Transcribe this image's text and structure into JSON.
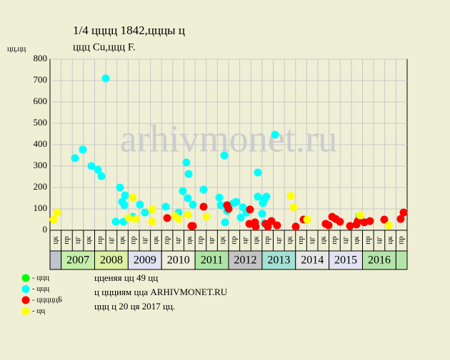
{
  "chart_data": {
    "type": "scatter",
    "title": "1/4 цццц 1842,цццы ц",
    "subtitle": "ццц Cu,ццц F.",
    "y_label": "цц,цц",
    "watermark": "arhivmonet.ru",
    "xlim": [
      0,
      32
    ],
    "ylim": [
      0,
      800
    ],
    "yticks": [
      0,
      100,
      200,
      300,
      400,
      500,
      600,
      700,
      800
    ],
    "grid": true,
    "column_labels": [
      "цк",
      "пр",
      "цг",
      "цк",
      "пр",
      "цг",
      "цк",
      "пр",
      "цг",
      "цк",
      "пр",
      "цг",
      "цк",
      "пр",
      "цг",
      "цк",
      "пр",
      "цг",
      "цк",
      "пр",
      "цг",
      "цк",
      "пр",
      "цг",
      "цк",
      "пр",
      "цг",
      "цк",
      "пр",
      "цг",
      "цк",
      "пр"
    ],
    "years": [
      "2007",
      "2008",
      "2009",
      "2010",
      "2011",
      "2012",
      "2013",
      "2014",
      "2015",
      "2016"
    ],
    "year_colors": [
      "#c4eeaa",
      "#dcf0a4",
      "#e2e2f0",
      "#eeeedc",
      "#aee4a4",
      "#c4c4c4",
      "#a4e0d4",
      "#e6e6e6",
      "#e2e2f0",
      "#b4e4aa"
    ],
    "series": [
      {
        "name": "- ццц",
        "color": "#00ff00",
        "x": [],
        "values": []
      },
      {
        "name": "- ццц",
        "color": "#00ffff",
        "x": [
          2.24,
          2.94,
          3.71,
          4.29,
          4.61,
          4.99,
          5.89,
          6.27,
          6.46,
          6.72,
          6.66,
          6.59,
          7.42,
          8.06,
          8.51,
          10.37,
          11.52,
          11.9,
          12.22,
          12.42,
          12.35,
          12.8,
          13.76,
          15.17,
          15.3,
          15.62,
          15.68,
          15.87,
          16.45,
          16.7,
          17.09,
          17.28,
          17.6,
          18.62,
          18.62,
          19.07,
          19.2,
          19.39,
          19.01,
          19.2,
          20.16,
          27.71
        ],
        "values": [
          337,
          377,
          300,
          283,
          253,
          710,
          40,
          200,
          133,
          163,
          117,
          40,
          63,
          120,
          83,
          110,
          83,
          183,
          317,
          263,
          150,
          120,
          190,
          153,
          117,
          350,
          37,
          90,
          127,
          133,
          60,
          107,
          83,
          270,
          157,
          127,
          143,
          157,
          77,
          33,
          447,
          67
        ]
      },
      {
        "name": "- цццццБ",
        "color": "#ff0000",
        "x": [
          10.5,
          12.67,
          12.8,
          13.76,
          15.87,
          16,
          17.86,
          17.92,
          18.37,
          18.43,
          19.33,
          19.52,
          19.84,
          20.35,
          22.02,
          22.72,
          24.7,
          24.96,
          25.28,
          25.6,
          25.98,
          26.88,
          27.46,
          27.58,
          28.16,
          28.67,
          29.95,
          31.42,
          31.68
        ],
        "values": [
          57,
          20,
          20,
          110,
          117,
          100,
          30,
          97,
          37,
          17,
          30,
          17,
          43,
          23,
          17,
          50,
          30,
          23,
          63,
          53,
          40,
          20,
          27,
          43,
          37,
          43,
          50,
          53,
          83
        ]
      },
      {
        "name": "- цц",
        "color": "#ffff00",
        "x": [
          0.32,
          0.64,
          7.04,
          7.42,
          7.68,
          9.15,
          9.15,
          11.2,
          11.52,
          12.35,
          14.02,
          21.57,
          21.82,
          23.04,
          27.78,
          30.34
        ],
        "values": [
          50,
          83,
          57,
          153,
          53,
          97,
          40,
          67,
          53,
          73,
          63,
          160,
          107,
          50,
          70,
          23
        ]
      }
    ],
    "notes": [
      "цценяя цц 49 цц",
      "ц ццциям цца ARHIVMONET.RU",
      "ццц ц 20 ця 2017 цц."
    ]
  }
}
